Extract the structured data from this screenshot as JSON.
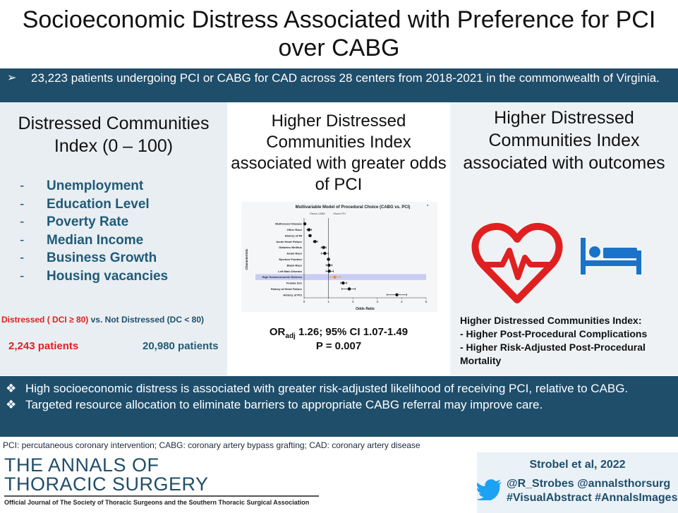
{
  "title": "Socioeconomic Distress Associated with Preference for PCI over CABG",
  "top_banner": {
    "bullet_glyph": "➢",
    "text": "23,223 patients undergoing PCI or CABG for CAD across 28 centers from 2018-2021 in the commonwealth of Virginia."
  },
  "left_panel": {
    "heading": "Distressed Communities Index (0 – 100)",
    "factors": [
      {
        "dash": "-",
        "label": "Unemployment"
      },
      {
        "dash": "-",
        "label": "Education Level"
      },
      {
        "dash": "-",
        "label": "Poverty Rate"
      },
      {
        "dash": "-",
        "label": "Median Income"
      },
      {
        "dash": "-",
        "label": "Business Growth"
      },
      {
        "dash": "-",
        "label": "Housing vacancies"
      }
    ],
    "distressed_label": "Distressed  ( DCI ≥ 80)",
    "vs_text": " vs. ",
    "not_distressed_label": "Not Distressed  (DC < 80)",
    "distressed_count": "2,243 patients",
    "not_distressed_count": "20,980 patients"
  },
  "middle_panel": {
    "heading": "Higher Distressed Communities Index associated with greater odds of PCI",
    "or_prefix": "OR",
    "or_sub": "adj",
    "or_text": " 1.26; 95% CI 1.07-1.49",
    "p_value": "P = 0.007"
  },
  "right_panel": {
    "heading": "Higher Distressed Communities Index associated with outcomes",
    "outcomes_title": "Higher Distressed Communities Index:",
    "outcomes": [
      "- Higher Post-Procedural Complications",
      "- Higher Risk-Adjusted Post-Procedural Mortality"
    ],
    "icons": [
      "heart-rate-icon",
      "hospital-bed-icon"
    ],
    "icon_colors": {
      "heart": "#e02020",
      "bed": "#1a73c8"
    }
  },
  "bottom_banner": {
    "bullet_glyph": "❖",
    "bullets": [
      "High socioeconomic distress is associated with greater risk-adjusted likelihood of receiving PCI, relative to CABG.",
      "Targeted resource allocation to eliminate barriers to appropriate CABG referral may improve care."
    ]
  },
  "abbreviations": "PCI: percutaneous coronary intervention;  CABG:  coronary artery bypass grafting; CAD: coronary artery disease",
  "journal": {
    "line1": "THE ANNALS OF",
    "line2": "THORACIC SURGERY",
    "subtitle": "Official Journal of The Society of Thoracic Surgeons and the Southern Thoracic Surgical Association"
  },
  "credit": {
    "author": "Strobel et al, 2022",
    "handles": "@R_Strobes @annalsthorsurg",
    "hashtags": "#VisualAbstract #AnnalsImages"
  },
  "colors": {
    "banner": "#1f4e6b",
    "accent_red": "#e02020",
    "factor_blue": "#1f5b78",
    "highlight_row": "#c9cdf5",
    "highlight_point": "#f08a30"
  },
  "chart_data": {
    "type": "scatter",
    "title": "Multivariable Model of Procedural Choice (CABG vs. PCI)",
    "title_superscript": "a",
    "favors_left": "Favors CABG",
    "favors_right": "Favors PCI",
    "xlabel": "Odds Ratio",
    "ylabel": "Characteristic",
    "xlim": [
      0,
      5
    ],
    "xticks": [
      "0",
      "1",
      "2",
      "3",
      "4",
      "5"
    ],
    "reference_line": 1,
    "highlighted": "High Socioeconomic Distress",
    "categories": [
      "Multivessel Disease",
      "Other Race",
      "History of MI",
      "Acute Heart Failure",
      "Diabetes Mellitus",
      "Asian Race",
      "Ejection Fraction",
      "Black Race",
      "Left Main Disease",
      "High Socioeconomic Distress",
      "Female Sex",
      "History of Heart Failure",
      "History of PCI"
    ],
    "values": [
      0.03,
      0.2,
      0.24,
      0.45,
      0.8,
      0.85,
      1.0,
      1.02,
      1.03,
      1.26,
      1.6,
      1.85,
      3.8
    ],
    "ci_low": [
      0.02,
      0.12,
      0.2,
      0.38,
      0.7,
      0.7,
      0.95,
      0.9,
      0.9,
      1.07,
      1.5,
      1.55,
      3.4
    ],
    "ci_high": [
      0.04,
      0.3,
      0.3,
      0.55,
      0.9,
      1.0,
      1.05,
      1.15,
      1.2,
      1.49,
      1.75,
      2.1,
      4.2
    ]
  }
}
